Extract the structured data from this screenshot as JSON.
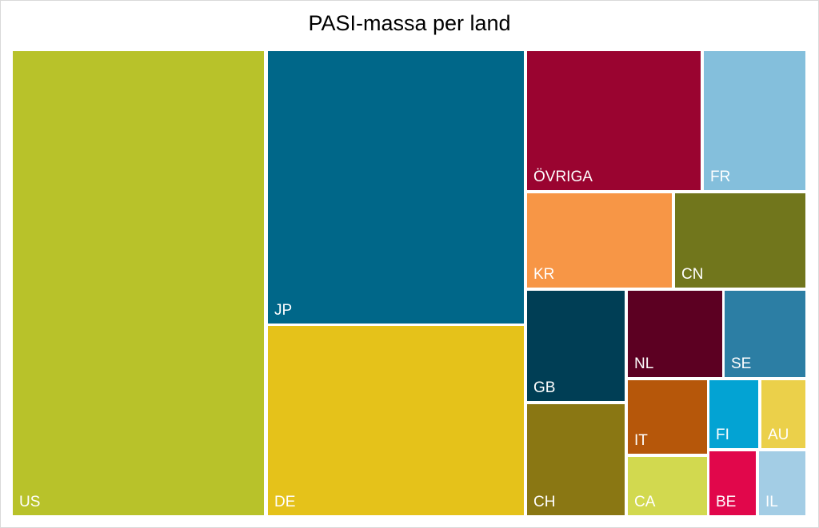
{
  "chart_data": {
    "type": "treemap",
    "title": "PASI-massa per land",
    "items": [
      {
        "label": "US",
        "color": "#b8c22a"
      },
      {
        "label": "JP",
        "color": "#006789"
      },
      {
        "label": "DE",
        "color": "#e5c21a"
      },
      {
        "label": "ÖVRIGA",
        "color": "#9a0430"
      },
      {
        "label": "FR",
        "color": "#84bfdc"
      },
      {
        "label": "KR",
        "color": "#f79646"
      },
      {
        "label": "CN",
        "color": "#71761c"
      },
      {
        "label": "GB",
        "color": "#003e55"
      },
      {
        "label": "NL",
        "color": "#5c0022"
      },
      {
        "label": "SE",
        "color": "#2c7ea4"
      },
      {
        "label": "CH",
        "color": "#8a7713"
      },
      {
        "label": "IT",
        "color": "#b6570a"
      },
      {
        "label": "FI",
        "color": "#03a3d3"
      },
      {
        "label": "AU",
        "color": "#ebd04a"
      },
      {
        "label": "CA",
        "color": "#d2d94f"
      },
      {
        "label": "BE",
        "color": "#e1074b"
      },
      {
        "label": "IL",
        "color": "#a3cde5"
      }
    ]
  }
}
